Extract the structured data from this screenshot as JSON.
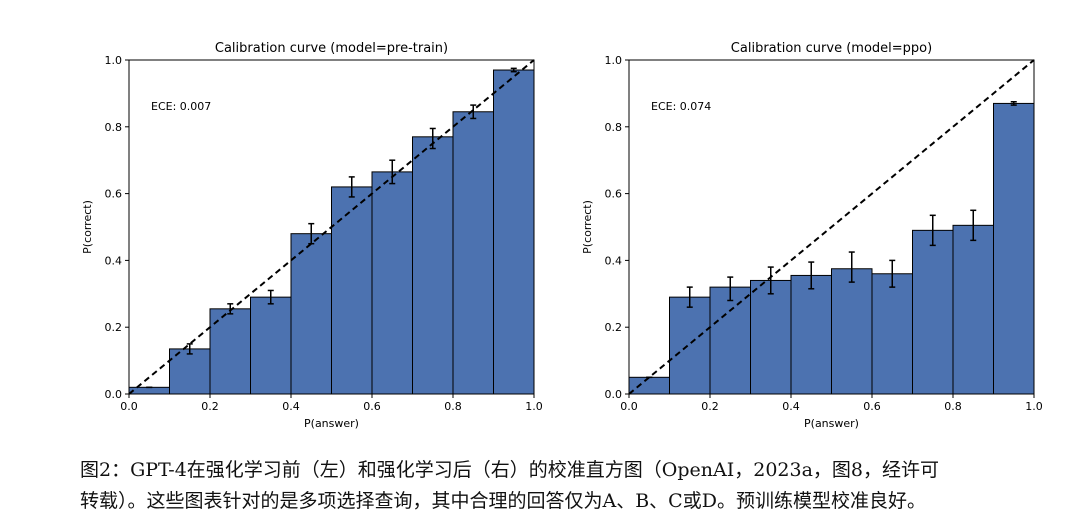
{
  "charts": [
    {
      "chart_data": {
        "type": "bar",
        "title": "Calibration curve (model=pre-train)",
        "xlabel": "P(answer)",
        "ylabel": "P(correct)",
        "xlim": [
          0,
          1
        ],
        "ylim": [
          0,
          1
        ],
        "xticks": [
          "0.0",
          "0.2",
          "0.4",
          "0.6",
          "0.8",
          "1.0"
        ],
        "yticks": [
          "0.0",
          "0.2",
          "0.4",
          "0.6",
          "0.8",
          "1.0"
        ],
        "annotation": "ECE: 0.007",
        "bin_edges": [
          0,
          0.1,
          0.2,
          0.3,
          0.4,
          0.5,
          0.6,
          0.7,
          0.8,
          0.9,
          1.0
        ],
        "values": [
          0.02,
          0.135,
          0.255,
          0.29,
          0.48,
          0.62,
          0.665,
          0.77,
          0.845,
          0.97
        ],
        "error_x": [
          0.05,
          0.15,
          0.25,
          0.35,
          0.45,
          0.55,
          0.65,
          0.75,
          0.85,
          0.95
        ],
        "error_y": [
          0.02,
          0.135,
          0.255,
          0.29,
          0.48,
          0.62,
          0.665,
          0.765,
          0.845,
          0.97
        ],
        "error": [
          0.0,
          0.015,
          0.015,
          0.02,
          0.03,
          0.03,
          0.035,
          0.03,
          0.02,
          0.005
        ],
        "diagonal": true,
        "bar_color": "#4c72b0"
      }
    },
    {
      "chart_data": {
        "type": "bar",
        "title": "Calibration curve (model=ppo)",
        "xlabel": "P(answer)",
        "ylabel": "P(correct)",
        "xlim": [
          0,
          1
        ],
        "ylim": [
          0,
          1
        ],
        "xticks": [
          "0.0",
          "0.2",
          "0.4",
          "0.6",
          "0.8",
          "1.0"
        ],
        "yticks": [
          "0.0",
          "0.2",
          "0.4",
          "0.6",
          "0.8",
          "1.0"
        ],
        "annotation": "ECE: 0.074",
        "bin_edges": [
          0,
          0.1,
          0.2,
          0.3,
          0.4,
          0.5,
          0.6,
          0.7,
          0.8,
          0.9,
          1.0
        ],
        "values": [
          0.05,
          0.29,
          0.32,
          0.34,
          0.355,
          0.375,
          0.36,
          0.49,
          0.505,
          0.87
        ],
        "error_x": [
          0.05,
          0.15,
          0.25,
          0.35,
          0.45,
          0.55,
          0.65,
          0.75,
          0.85,
          0.95
        ],
        "error_y": [
          0.05,
          0.29,
          0.315,
          0.34,
          0.355,
          0.38,
          0.36,
          0.49,
          0.505,
          0.87
        ],
        "error": [
          0.0,
          0.03,
          0.035,
          0.04,
          0.04,
          0.045,
          0.04,
          0.045,
          0.045,
          0.005
        ],
        "diagonal": true,
        "bar_color": "#4c72b0"
      }
    }
  ],
  "caption": {
    "line1": "图2：GPT-4在强化学习前（左）和强化学习后（右）的校准直方图（OpenAI，2023a，图8，经许可",
    "line2": "转载）。这些图表针对的是多项选择查询，其中合理的回答仅为A、B、C或D。预训练模型校准良好。"
  }
}
